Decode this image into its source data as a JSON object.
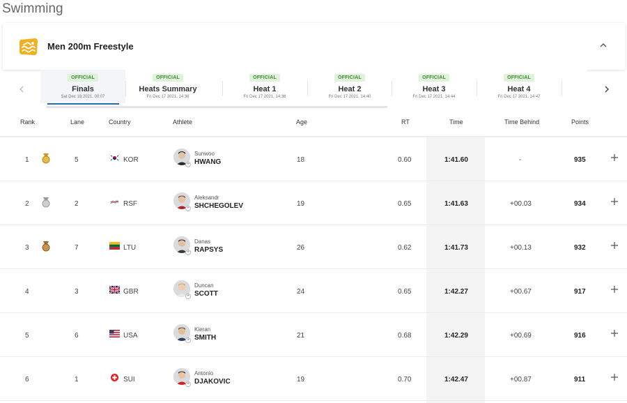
{
  "page": {
    "title": "Swimming"
  },
  "event": {
    "name": "Men 200m Freestyle"
  },
  "phases": [
    {
      "badge": "OFFICIAL",
      "name": "Finals",
      "date": "Sat Dec 18 2021, 00:07"
    },
    {
      "badge": "OFFICIAL",
      "name": "Heats Summary",
      "date": "Fri Dec 17 2021, 14:36"
    },
    {
      "badge": "OFFICIAL",
      "name": "Heat 1",
      "date": "Fri Dec 17 2021, 14:36"
    },
    {
      "badge": "OFFICIAL",
      "name": "Heat 2",
      "date": "Fri Dec 17 2021, 14:40"
    },
    {
      "badge": "OFFICIAL",
      "name": "Heat 3",
      "date": "Fri Dec 17 2021, 14:44"
    },
    {
      "badge": "OFFICIAL",
      "name": "Heat 4",
      "date": "Fri Dec 17 2021, 14:47"
    }
  ],
  "columns": {
    "rank": "Rank",
    "lane": "Lane",
    "country": "Country",
    "athlete": "Athlete",
    "age": "Age",
    "rt": "RT",
    "time": "Time",
    "time_behind": "Time Behind",
    "points": "Points"
  },
  "results": [
    {
      "rank": "1",
      "medal": "gold",
      "lane": "5",
      "country": "KOR",
      "first": "Sunwoo",
      "last": "HWANG",
      "age": "18",
      "rt": "0.60",
      "time": "1:41.60",
      "behind": "-",
      "points": "935"
    },
    {
      "rank": "2",
      "medal": "silver",
      "lane": "2",
      "country": "RSF",
      "first": "Aleksandr",
      "last": "SHCHEGOLEV",
      "age": "19",
      "rt": "0.65",
      "time": "1:41.63",
      "behind": "+00.03",
      "points": "934"
    },
    {
      "rank": "3",
      "medal": "bronze",
      "lane": "7",
      "country": "LTU",
      "first": "Danas",
      "last": "RAPSYS",
      "age": "26",
      "rt": "0.62",
      "time": "1:41.73",
      "behind": "+00.13",
      "points": "932"
    },
    {
      "rank": "4",
      "medal": "",
      "lane": "3",
      "country": "GBR",
      "first": "Duncan",
      "last": "SCOTT",
      "age": "24",
      "rt": "0.65",
      "time": "1:42.27",
      "behind": "+00.67",
      "points": "917"
    },
    {
      "rank": "5",
      "medal": "",
      "lane": "6",
      "country": "USA",
      "first": "Kieran",
      "last": "SMITH",
      "age": "21",
      "rt": "0.68",
      "time": "1:42.29",
      "behind": "+00.69",
      "points": "916"
    },
    {
      "rank": "6",
      "medal": "",
      "lane": "1",
      "country": "SUI",
      "first": "Antonio",
      "last": "DJAKOVIC",
      "age": "19",
      "rt": "0.70",
      "time": "1:42.47",
      "behind": "+00.87",
      "points": "911"
    }
  ],
  "colors": {
    "accent": "#2b6ca3",
    "badge_bg": "#dff2da",
    "badge_text": "#3f8a35",
    "event_icon": "#f2b01e"
  },
  "icons": {
    "event": "swimmer-icon",
    "collapse": "chevron-up-icon",
    "prev": "chevron-left-icon",
    "next": "chevron-right-icon",
    "expand": "plus-icon"
  }
}
